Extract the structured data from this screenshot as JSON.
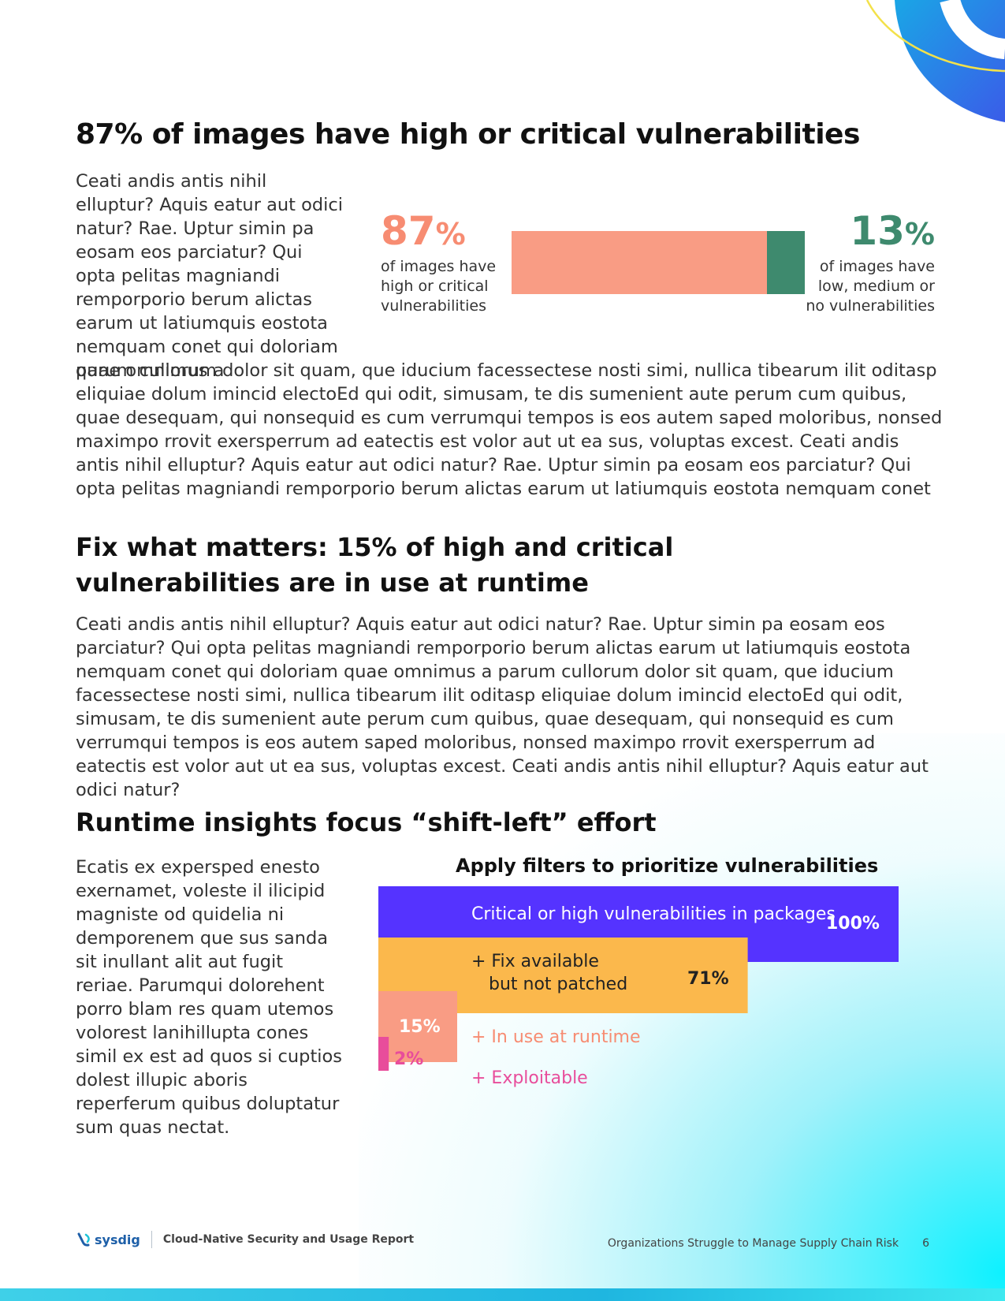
{
  "colors": {
    "salmon": "#f99c84",
    "salmon_text": "#f78c72",
    "teal": "#3e8a6e",
    "violet": "#5533ff",
    "amber": "#fbb84c",
    "pink": "#e84d9b",
    "brand_blue": "#1d5fa8"
  },
  "section1": {
    "heading": "87% of images have high or critical vulnerabilities",
    "para_wrap": "Ceati andis antis nihil elluptur? Aquis eatur aut odici natur? Rae. Uptur simin pa eosam eos parciatur? Qui opta pelitas magniandi remporporio berum alictas earum ut latiumquis eostota nemquam conet qui doloriam quae omnimus a",
    "para_full": "parum cullorum dolor sit quam, que iducium facessectese nosti simi, nullica tibearum ilit oditasp eliquiae dolum imincid electoEd qui odit, simusam, te dis sumenient aute perum cum quibus, quae desequam, qui nonsequid es cum verrumqui tempos is eos autem saped moloribus, nonsed maximpo rrovit exersperrum ad eatectis est volor aut ut ea sus, voluptas excest. Ceati andis antis nihil elluptur? Aquis eatur aut odici natur? Rae. Uptur simin pa eosam eos parciatur? Qui opta pelitas magniandi remporporio berum alictas earum ut latiumquis eostota nemquam conet",
    "stat_left": {
      "value": "87",
      "unit": "%",
      "caption_line1": "of images have",
      "caption_line2": "high or critical",
      "caption_line3": "vulnerabilities",
      "fraction": 0.87
    },
    "stat_right": {
      "value": "13",
      "unit": "%",
      "caption_line1": "of images have",
      "caption_line2": "low, medium or",
      "caption_line3": "no vulnerabilities",
      "fraction": 0.13
    }
  },
  "section2": {
    "heading": "Fix what matters: 15% of high and critical vulnerabilities are in use at runtime",
    "para": "Ceati andis antis nihil elluptur? Aquis eatur aut odici natur? Rae. Uptur simin pa eosam eos parciatur? Qui opta pelitas magniandi remporporio berum alictas earum ut latiumquis eostota nemquam conet qui doloriam quae omnimus a parum cullorum dolor sit quam, que iducium facessectese nosti simi, nullica tibearum ilit oditasp eliquiae dolum imincid electoEd qui odit, simusam, te dis sumenient aute perum cum quibus, quae desequam, qui nonsequid es cum verrumqui tempos is eos autem saped moloribus, nonsed maximpo rrovit exersperrum ad eatectis est volor aut ut ea sus, voluptas excest. Ceati andis antis nihil elluptur? Aquis eatur aut odici natur?"
  },
  "section3": {
    "heading": "Runtime insights focus “shift-left” effort",
    "para": "Ecatis ex expersped enesto exernamet, voleste il ilicipid magniste od quidelia ni demporenem que sus sanda sit inullant alit aut fugit reriae. Parumqui dolorehent porro blam res quam utemos volorest lanihillupta cones simil ex est ad quos si cuptios dolest illupic aboris reperferum quibus doluptatur sum quas nectat."
  },
  "chart_data": {
    "type": "bar",
    "orientation": "horizontal",
    "title": "Apply filters to prioritize vulnerabilities",
    "unit": "%",
    "bars": [
      {
        "label": "Critical or high vulnerabilities in packages",
        "value": 100,
        "value_label": "100%",
        "color": "#5533ff",
        "label_color": "#ffffff",
        "value_color": "#ffffff"
      },
      {
        "label_lines": [
          "+ Fix available",
          "but not patched"
        ],
        "value": 71,
        "value_label": "71%",
        "color": "#fbb84c",
        "label_color": "#222222",
        "value_color": "#222222"
      },
      {
        "label": "+ In use at runtime",
        "value": 15,
        "value_label": "15%",
        "color": "#f99c84",
        "label_color": "#f78c72",
        "value_color": "#ffffff"
      },
      {
        "label": "+ Exploitable",
        "value": 2,
        "value_label": "2%",
        "color": "#e84d9b",
        "label_color": "#e84d9b",
        "value_color": "#e84d9b"
      }
    ],
    "xlim": [
      0,
      100
    ]
  },
  "footer": {
    "logo_text": "sysdig",
    "report_title": "Cloud-Native Security and Usage Report",
    "section_title": "Organizations Struggle to Manage Supply Chain Risk",
    "page_number": "6"
  }
}
